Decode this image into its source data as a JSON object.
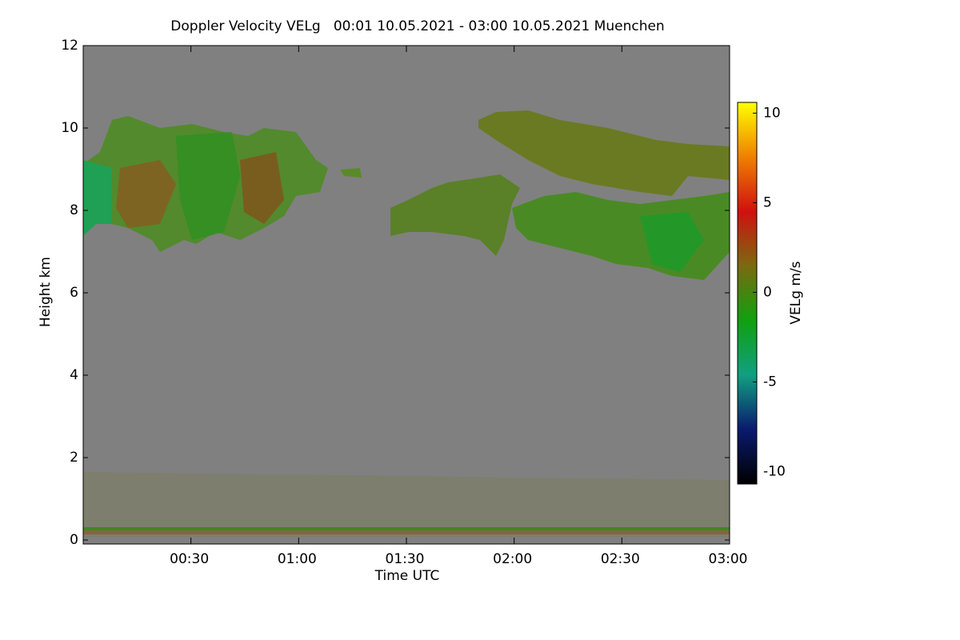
{
  "chart_data": {
    "type": "heatmap",
    "title": "Doppler Velocity VELg   00:01 10.05.2021 - 03:00 10.05.2021 Muenchen",
    "x_label": "Time UTC",
    "y_label": "Height km",
    "colorbar_label": "VELg m/s",
    "xlim": [
      0,
      180
    ],
    "xticks": [
      {
        "value": 30,
        "label": "00:30"
      },
      {
        "value": 60,
        "label": "01:00"
      },
      {
        "value": 90,
        "label": "01:30"
      },
      {
        "value": 120,
        "label": "02:00"
      },
      {
        "value": 150,
        "label": "02:30"
      },
      {
        "value": 180,
        "label": "03:00"
      }
    ],
    "ylim": [
      0,
      12
    ],
    "yticks": [
      0,
      2,
      4,
      6,
      8,
      10,
      12
    ],
    "clim": [
      -10.7,
      10.6
    ],
    "cticks": [
      -10,
      -5,
      0,
      5,
      10
    ],
    "colormap": [
      "#000000",
      "#0a1a6e",
      "#10a080",
      "#10a010",
      "#7a6a10",
      "#d01010",
      "#f08000",
      "#ffff00"
    ],
    "background": "#808080"
  }
}
